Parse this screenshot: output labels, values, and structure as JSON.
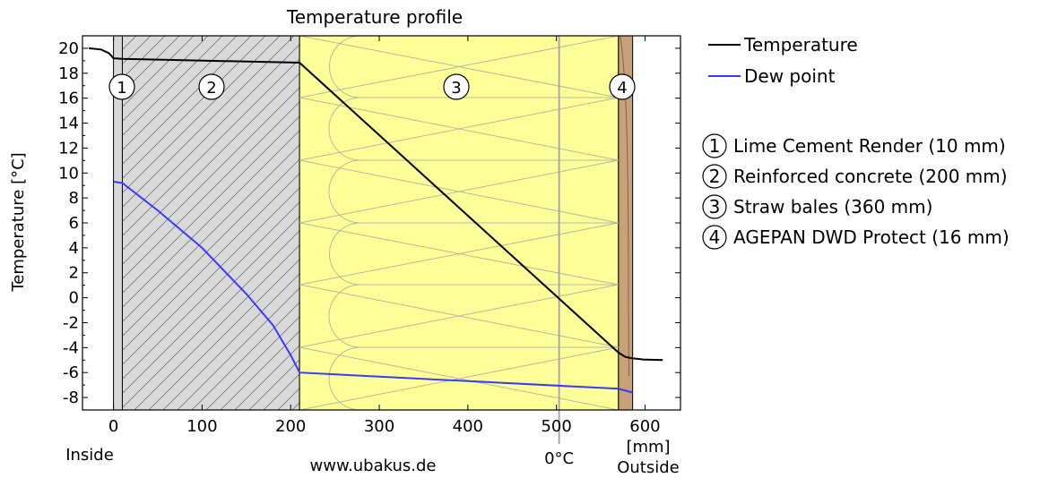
{
  "chart_data": {
    "type": "line",
    "title": "Temperature profile",
    "xlabel": "",
    "x_unit": "[mm]",
    "ylabel": "Temperature  [°C]",
    "xlim": [
      -35,
      640
    ],
    "ylim": [
      -9,
      21
    ],
    "x_ticks": [
      0,
      100,
      200,
      300,
      400,
      500,
      600
    ],
    "y_ticks": [
      20,
      18,
      16,
      14,
      12,
      10,
      8,
      6,
      4,
      2,
      0,
      -2,
      -4,
      -6,
      -8
    ],
    "x_tick_labels": [
      "0",
      "100",
      "200",
      "300",
      "400",
      "500",
      "600"
    ],
    "y_tick_labels": [
      "20",
      "18",
      "16",
      "14",
      "12",
      "10",
      "8",
      "6",
      "4",
      "2",
      "0",
      "-2",
      "-4",
      "-6",
      "-8"
    ],
    "layers": [
      {
        "num": "1",
        "name": "Lime Cement Render (10 mm)",
        "from": 0,
        "to": 10,
        "color": "#d8d8d8"
      },
      {
        "num": "2",
        "name": "Reinforced concrete (200 mm)",
        "from": 10,
        "to": 210,
        "color": "#d9d9d9"
      },
      {
        "num": "3",
        "name": "Straw bales (360 mm)",
        "from": 210,
        "to": 570,
        "color": "#ffff99"
      },
      {
        "num": "4",
        "name": "AGEPAN DWD Protect (16 mm)",
        "from": 570,
        "to": 586,
        "color": "#c8a07a"
      }
    ],
    "series": [
      {
        "name": "Temperature",
        "color": "#000000",
        "points": [
          [
            -28,
            20.0
          ],
          [
            -14,
            19.9
          ],
          [
            -5,
            19.6
          ],
          [
            0,
            19.2
          ],
          [
            10,
            19.15
          ],
          [
            210,
            18.85
          ],
          [
            570,
            -4.4
          ],
          [
            578,
            -4.75
          ],
          [
            586,
            -4.85
          ],
          [
            598,
            -4.95
          ],
          [
            620,
            -5.0
          ]
        ]
      },
      {
        "name": "Dew point",
        "color": "#3a3aff",
        "points": [
          [
            0,
            9.3
          ],
          [
            10,
            9.2
          ],
          [
            50,
            7.0
          ],
          [
            100,
            4.0
          ],
          [
            150,
            0.3
          ],
          [
            180,
            -2.2
          ],
          [
            200,
            -4.6
          ],
          [
            210,
            -6.0
          ],
          [
            570,
            -7.3
          ],
          [
            586,
            -7.6
          ]
        ]
      }
    ],
    "zero_line": {
      "x": 503,
      "label": "0°C",
      "color": "#a8a8a8"
    },
    "legend_position": "top-right",
    "grid": false
  },
  "annotations": {
    "inside": "Inside",
    "outside": "Outside",
    "website": "www.ubakus.de"
  }
}
